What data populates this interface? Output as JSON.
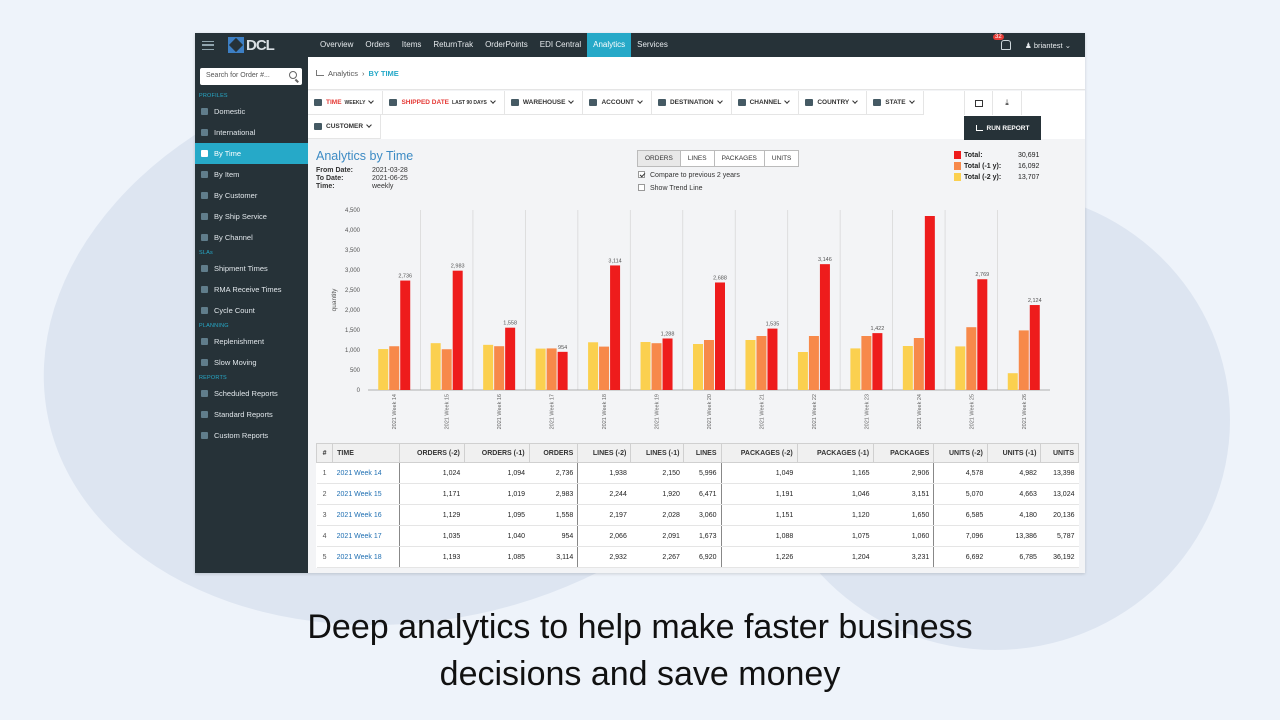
{
  "topbar": {
    "nav": [
      "Overview",
      "Orders",
      "Items",
      "ReturnTrak",
      "OrderPoints",
      "EDI Central",
      "Analytics",
      "Services"
    ],
    "active": "Analytics",
    "badge": "32",
    "user": "briantest"
  },
  "sidebar": {
    "search_placeholder": "Search for Order #...",
    "sections": [
      {
        "title": "PROFILES",
        "items": [
          "Domestic",
          "International",
          "By Time",
          "By Item",
          "By Customer",
          "By Ship Service",
          "By Channel"
        ]
      },
      {
        "title": "SLAs",
        "items": [
          "Shipment Times",
          "RMA Receive Times",
          "Cycle Count"
        ]
      },
      {
        "title": "PLANNING",
        "items": [
          "Replenishment",
          "Slow Moving"
        ]
      },
      {
        "title": "REPORTS",
        "items": [
          "Scheduled Reports",
          "Standard Reports",
          "Custom Reports"
        ]
      }
    ],
    "active": "By Time"
  },
  "breadcrumb": {
    "root": "Analytics",
    "current": "BY TIME"
  },
  "filters": {
    "row1": [
      {
        "label": "TIME",
        "sub": "WEEKLY",
        "red": true
      },
      {
        "label": "SHIPPED DATE",
        "sub": "LAST 90 DAYS",
        "red": true
      },
      {
        "label": "WAREHOUSE",
        "sub": ""
      },
      {
        "label": "ACCOUNT",
        "sub": ""
      },
      {
        "label": "DESTINATION",
        "sub": ""
      },
      {
        "label": "CHANNEL",
        "sub": ""
      },
      {
        "label": "COUNTRY",
        "sub": ""
      },
      {
        "label": "STATE",
        "sub": ""
      }
    ],
    "row2": [
      {
        "label": "CUSTOMER",
        "sub": ""
      }
    ],
    "run_report": "RUN REPORT"
  },
  "report": {
    "title": "Analytics by Time",
    "from_label": "From Date:",
    "from": "2021-03-28",
    "to_label": "To Date:",
    "to": "2021-06-25",
    "time_label": "Time:",
    "time": "weekly",
    "tabs": [
      "ORDERS",
      "LINES",
      "PACKAGES",
      "UNITS"
    ],
    "active_tab": "ORDERS",
    "compare_label": "Compare to previous 2 years",
    "trend_label": "Show Trend Line"
  },
  "legend": [
    {
      "label": "Total:",
      "value": "30,691",
      "color": "#ee1c1c"
    },
    {
      "label": "Total (-1 y):",
      "value": "16,092",
      "color": "#f7894a"
    },
    {
      "label": "Total (-2 y):",
      "value": "13,707",
      "color": "#fbd04f"
    }
  ],
  "chart_data": {
    "type": "bar",
    "ylabel": "quantity",
    "ylim": [
      0,
      4500
    ],
    "yticks": [
      0,
      500,
      1000,
      1500,
      2000,
      2500,
      3000,
      3500,
      4000,
      4500
    ],
    "categories": [
      "2021 Week 14",
      "2021 Week 15",
      "2021 Week 16",
      "2021 Week 17",
      "2021 Week 18",
      "2021 Week 19",
      "2021 Week 20",
      "2021 Week 21",
      "2021 Week 22",
      "2021 Week 23",
      "2021 Week 24",
      "2021 Week 25",
      "2021 Week 26"
    ],
    "series": [
      {
        "name": "Total (-2 y)",
        "color": "#fbd04f",
        "values": [
          1024,
          1171,
          1129,
          1035,
          1193,
          1200,
          1150,
          1250,
          950,
          1040,
          1100,
          1090,
          420
        ]
      },
      {
        "name": "Total (-1 y)",
        "color": "#f7894a",
        "values": [
          1094,
          1019,
          1095,
          1040,
          1085,
          1170,
          1250,
          1350,
          1350,
          1350,
          1300,
          1570,
          1490
        ]
      },
      {
        "name": "Total",
        "color": "#ee1c1c",
        "values": [
          2736,
          2983,
          1558,
          954,
          3114,
          1288,
          2688,
          1535,
          3146,
          1422,
          4350,
          2769,
          2124
        ],
        "labels": [
          "2,736",
          "2,983",
          "1,558",
          "954",
          "3,114",
          "1,288",
          "2,688",
          "1,535",
          "3,146",
          "1,422",
          "",
          "2,769",
          "2,124"
        ]
      }
    ]
  },
  "table": {
    "headers": [
      "#",
      "TIME",
      "ORDERS (-2)",
      "ORDERS (-1)",
      "ORDERS",
      "LINES (-2)",
      "LINES (-1)",
      "LINES",
      "PACKAGES (-2)",
      "PACKAGES (-1)",
      "PACKAGES",
      "UNITS (-2)",
      "UNITS (-1)",
      "UNITS"
    ],
    "rows": [
      [
        "1",
        "2021 Week 14",
        "1,024",
        "1,094",
        "2,736",
        "1,938",
        "2,150",
        "5,996",
        "1,049",
        "1,165",
        "2,906",
        "4,578",
        "4,982",
        "13,398"
      ],
      [
        "2",
        "2021 Week 15",
        "1,171",
        "1,019",
        "2,983",
        "2,244",
        "1,920",
        "6,471",
        "1,191",
        "1,046",
        "3,151",
        "5,070",
        "4,663",
        "13,024"
      ],
      [
        "3",
        "2021 Week 16",
        "1,129",
        "1,095",
        "1,558",
        "2,197",
        "2,028",
        "3,060",
        "1,151",
        "1,120",
        "1,650",
        "6,585",
        "4,180",
        "20,136"
      ],
      [
        "4",
        "2021 Week 17",
        "1,035",
        "1,040",
        "954",
        "2,066",
        "2,091",
        "1,673",
        "1,088",
        "1,075",
        "1,060",
        "7,096",
        "13,386",
        "5,787"
      ],
      [
        "5",
        "2021 Week 18",
        "1,193",
        "1,085",
        "3,114",
        "2,932",
        "2,267",
        "6,920",
        "1,226",
        "1,204",
        "3,231",
        "6,692",
        "6,785",
        "36,192"
      ]
    ]
  },
  "caption": {
    "line1": "Deep analytics to help make faster business",
    "line2": "decisions and save money"
  }
}
